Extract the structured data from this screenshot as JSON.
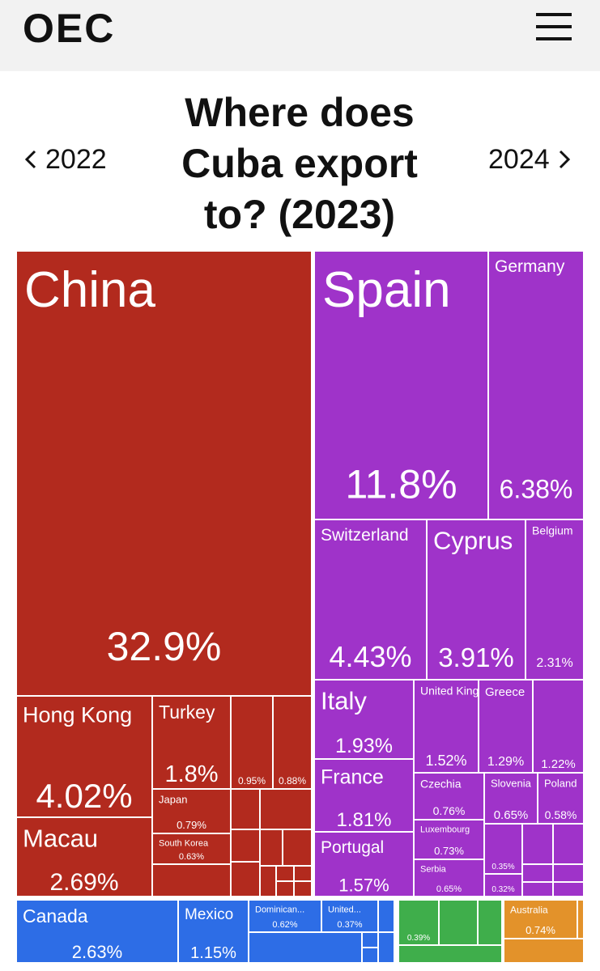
{
  "header": {
    "logo": "OEC"
  },
  "nav": {
    "prev": "2022",
    "next": "2024"
  },
  "chart_data": {
    "type": "treemap",
    "title": "Where does Cuba export to? (2023)",
    "categories": [
      "China",
      "Hong Kong",
      "Macau",
      "Turkey",
      null,
      null,
      "Japan",
      "South Korea",
      "Spain",
      "Germany",
      "Switzerland",
      "Cyprus",
      "Belgium",
      "Italy",
      "United Kingdom",
      "Greece",
      null,
      "France",
      "Portugal",
      "Czechia",
      "Slovenia",
      "Poland",
      "Luxembourg",
      "Serbia",
      null,
      null,
      "Canada",
      "Mexico",
      "Dominican...",
      "United...",
      null,
      "Australia"
    ],
    "values": [
      32.9,
      4.02,
      2.69,
      1.8,
      0.95,
      0.88,
      0.79,
      0.63,
      11.8,
      6.38,
      4.43,
      3.91,
      2.31,
      1.93,
      1.52,
      1.29,
      1.22,
      1.81,
      1.57,
      0.76,
      0.65,
      0.58,
      0.73,
      0.65,
      0.35,
      0.32,
      2.63,
      1.15,
      0.62,
      0.37,
      0.39,
      0.74
    ],
    "value_labels": [
      "32.9%",
      "4.02%",
      "2.69%",
      "1.8%",
      "0.95%",
      "0.88%",
      "0.79%",
      "0.63%",
      "11.8%",
      "6.38%",
      "4.43%",
      "3.91%",
      "2.31%",
      "1.93%",
      "1.52%",
      "1.29%",
      "1.22%",
      "1.81%",
      "1.57%",
      "0.76%",
      "0.65%",
      "0.58%",
      "0.73%",
      "0.65%",
      "0.35%",
      "0.32%",
      "2.63%",
      "1.15%",
      "0.62%",
      "0.37%",
      "0.39%",
      "0.74%"
    ],
    "colors": [
      "#b22a1e",
      "#b22a1e",
      "#b22a1e",
      "#b22a1e",
      "#b22a1e",
      "#b22a1e",
      "#b22a1e",
      "#b22a1e",
      "#9f33c9",
      "#9f33c9",
      "#9f33c9",
      "#9f33c9",
      "#9f33c9",
      "#9f33c9",
      "#9f33c9",
      "#9f33c9",
      "#9f33c9",
      "#9f33c9",
      "#9f33c9",
      "#9f33c9",
      "#9f33c9",
      "#9f33c9",
      "#9f33c9",
      "#9f33c9",
      "#9f33c9",
      "#9f33c9",
      "#2d6de6",
      "#2d6de6",
      "#2d6de6",
      "#2d6de6",
      "#3fae4b",
      "#e3922a"
    ]
  }
}
